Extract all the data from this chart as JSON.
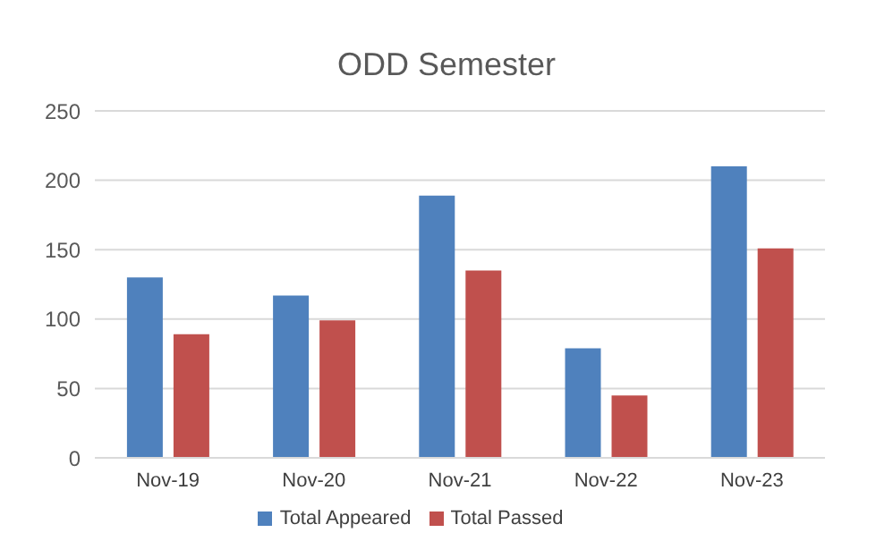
{
  "chart_data": {
    "type": "bar",
    "title": "ODD Semester",
    "categories": [
      "Nov-19",
      "Nov-20",
      "Nov-21",
      "Nov-22",
      "Nov-23"
    ],
    "series": [
      {
        "name": "Total Appeared",
        "color": "#4f81bd",
        "values": [
          130,
          117,
          189,
          79,
          210
        ]
      },
      {
        "name": "Total Passed",
        "color": "#c0504d",
        "values": [
          89,
          99,
          135,
          45,
          151
        ]
      }
    ],
    "ylim": [
      0,
      250
    ],
    "yticks": [
      0,
      50,
      100,
      150,
      200,
      250
    ],
    "grid": "y",
    "legend": "bottom"
  }
}
